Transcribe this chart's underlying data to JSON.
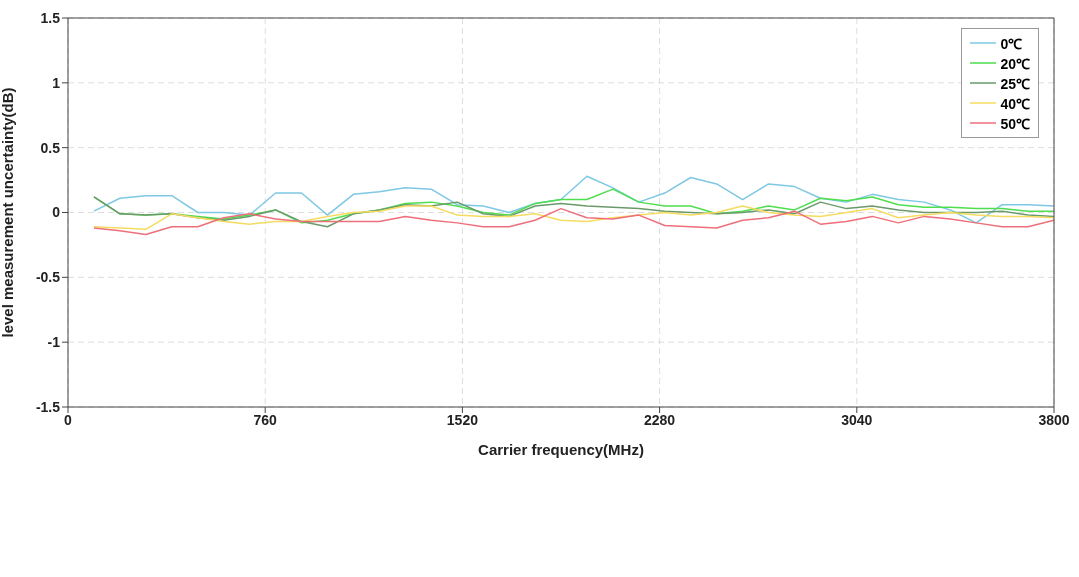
{
  "chart_data": {
    "type": "line",
    "xlabel": "Carrier frequency(MHz)",
    "ylabel": "level measurement uncertainty(dB)",
    "x": [
      100,
      200,
      300,
      400,
      500,
      600,
      700,
      800,
      900,
      1000,
      1100,
      1200,
      1300,
      1400,
      1500,
      1600,
      1700,
      1800,
      1900,
      2000,
      2100,
      2200,
      2300,
      2400,
      2500,
      2600,
      2700,
      2800,
      2900,
      3000,
      3100,
      3200,
      3300,
      3400,
      3500,
      3600,
      3700,
      3800
    ],
    "series": [
      {
        "name": "0℃",
        "color": "#7ec8e3",
        "values": [
          0.01,
          0.11,
          0.13,
          0.13,
          0.0,
          0.0,
          -0.02,
          0.15,
          0.15,
          -0.02,
          0.14,
          0.16,
          0.19,
          0.18,
          0.06,
          0.05,
          0.0,
          0.07,
          0.1,
          0.28,
          0.19,
          0.08,
          0.15,
          0.27,
          0.22,
          0.1,
          0.22,
          0.2,
          0.11,
          0.08,
          0.14,
          0.1,
          0.08,
          0.02,
          -0.08,
          0.06,
          0.06,
          0.05
        ]
      },
      {
        "name": "20℃",
        "color": "#4ede4e",
        "values": [
          0.12,
          -0.01,
          -0.02,
          -0.01,
          -0.03,
          -0.05,
          -0.02,
          0.02,
          -0.08,
          -0.06,
          -0.01,
          0.02,
          0.07,
          0.08,
          0.05,
          0.0,
          -0.02,
          0.07,
          0.1,
          0.1,
          0.18,
          0.08,
          0.05,
          0.05,
          -0.01,
          0.01,
          0.05,
          0.02,
          0.11,
          0.09,
          0.12,
          0.06,
          0.04,
          0.04,
          0.03,
          0.03,
          0.01,
          0.01
        ]
      },
      {
        "name": "25℃",
        "color": "#6a9a6a",
        "values": [
          0.12,
          -0.01,
          -0.02,
          -0.01,
          -0.04,
          -0.06,
          -0.03,
          0.02,
          -0.07,
          -0.11,
          -0.01,
          0.02,
          0.06,
          0.05,
          0.08,
          -0.01,
          -0.03,
          0.05,
          0.07,
          0.05,
          0.04,
          0.03,
          0.01,
          0.0,
          -0.01,
          0.0,
          0.02,
          -0.01,
          0.08,
          0.03,
          0.05,
          0.02,
          0.0,
          0.0,
          0.0,
          0.01,
          -0.02,
          -0.03
        ]
      },
      {
        "name": "40℃",
        "color": "#f5dc60",
        "values": [
          -0.11,
          -0.12,
          -0.13,
          -0.01,
          -0.04,
          -0.07,
          -0.09,
          -0.07,
          -0.07,
          -0.03,
          0.0,
          0.01,
          0.05,
          0.05,
          -0.02,
          -0.03,
          -0.03,
          -0.01,
          -0.06,
          -0.07,
          -0.04,
          -0.02,
          0.0,
          -0.02,
          0.0,
          0.05,
          0.0,
          -0.02,
          -0.03,
          0.0,
          0.03,
          -0.04,
          -0.02,
          0.0,
          -0.02,
          -0.03,
          -0.03,
          -0.04
        ]
      },
      {
        "name": "50℃",
        "color": "#ee6f7a",
        "values": [
          -0.12,
          -0.14,
          -0.17,
          -0.11,
          -0.11,
          -0.04,
          -0.01,
          -0.05,
          -0.07,
          -0.07,
          -0.07,
          -0.07,
          -0.03,
          -0.06,
          -0.08,
          -0.11,
          -0.11,
          -0.06,
          0.03,
          -0.04,
          -0.05,
          -0.02,
          -0.1,
          -0.11,
          -0.12,
          -0.06,
          -0.04,
          0.01,
          -0.09,
          -0.07,
          -0.03,
          -0.08,
          -0.03,
          -0.05,
          -0.08,
          -0.11,
          -0.11,
          -0.06
        ]
      }
    ],
    "xlim": [
      0,
      3800
    ],
    "xticks": [
      0,
      760,
      1520,
      2280,
      3040,
      3800
    ],
    "ylim": [
      -1.5,
      1.5
    ],
    "yticks": [
      -1.5,
      -1,
      -0.5,
      0,
      0.5,
      1,
      1.5
    ],
    "grid": true,
    "legend": "top right",
    "marker": "none",
    "line_style": "solid"
  }
}
